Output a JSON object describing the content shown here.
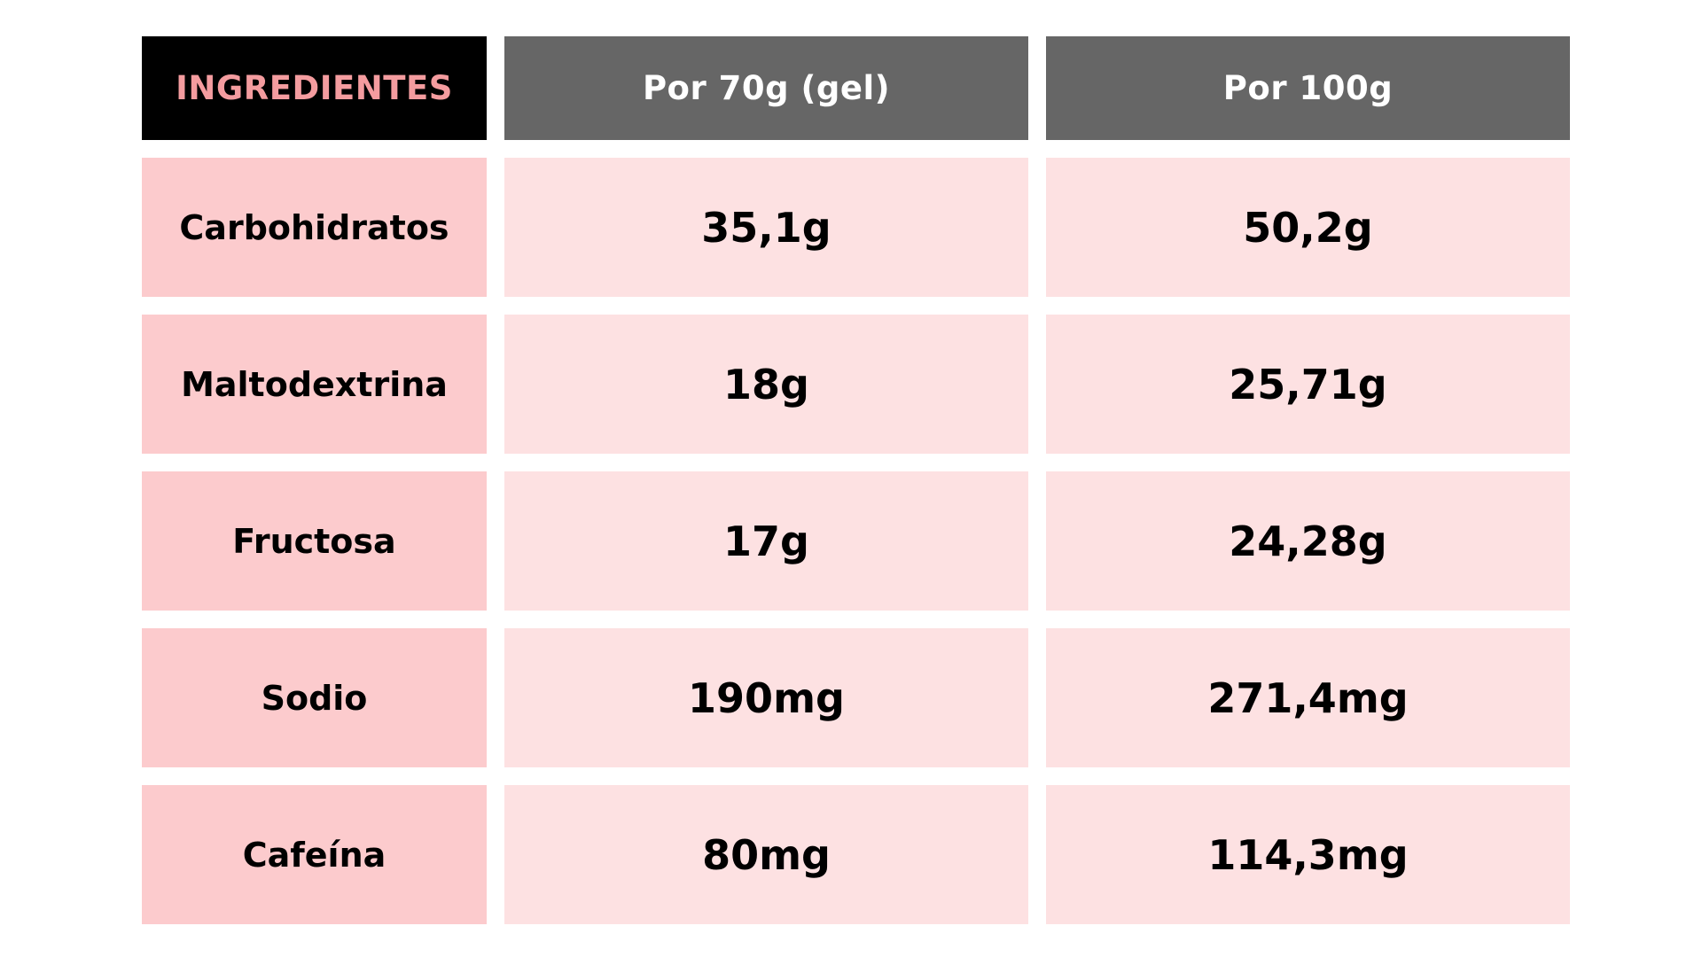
{
  "table": {
    "header": {
      "label": "INGREDIENTES",
      "col1": "Por 70g (gel)",
      "col2": "Por 100g"
    },
    "rows": [
      {
        "label": "Carbohidratos",
        "per70": "35,1g",
        "per100": "50,2g"
      },
      {
        "label": "Maltodextrina",
        "per70": "18g",
        "per100": "25,71g"
      },
      {
        "label": "Fructosa",
        "per70": "17g",
        "per100": "24,28g"
      },
      {
        "label": "Sodio",
        "per70": "190mg",
        "per100": "271,4mg"
      },
      {
        "label": "Cafeína",
        "per70": "80mg",
        "per100": "114,3mg"
      }
    ]
  },
  "colors": {
    "header_label_bg": "#000000",
    "header_label_text": "#f49c9f",
    "header_col_bg": "#666666",
    "header_col_text": "#ffffff",
    "row_label_bg": "#fccbcd",
    "row_value_bg": "#fde1e2"
  }
}
